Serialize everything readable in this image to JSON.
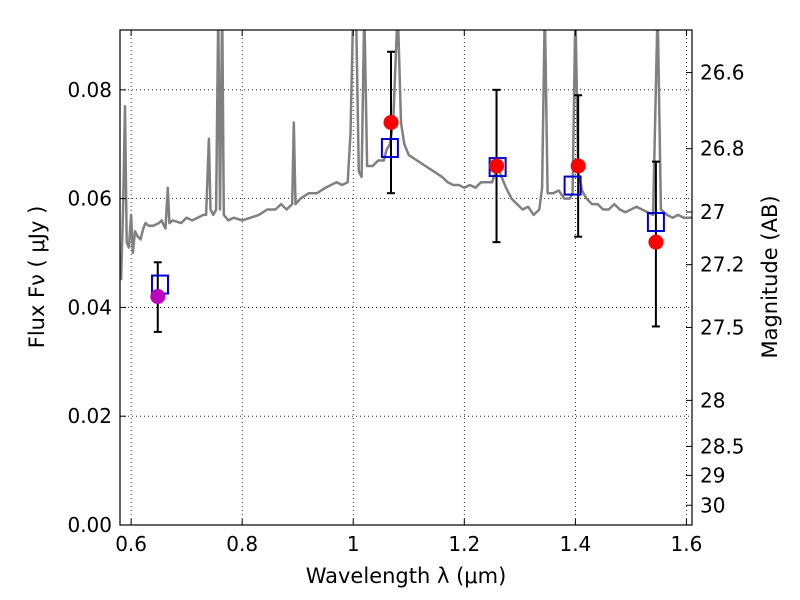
{
  "chart_data": {
    "type": "scatter",
    "title": "",
    "xlabel": "Wavelength  λ (μm)",
    "ylabel": "Flux  Fν  ( μJy )",
    "y2label": "Magnitude (AB)",
    "xlim": [
      0.58,
      1.61
    ],
    "ylim": [
      0.0,
      0.091
    ],
    "grid": true,
    "x_ticks": [
      {
        "value": 0.6,
        "label": "0.6"
      },
      {
        "value": 0.8,
        "label": "0.8"
      },
      {
        "value": 1.0,
        "label": "1"
      },
      {
        "value": 1.2,
        "label": "1.2"
      },
      {
        "value": 1.4,
        "label": "1.4"
      },
      {
        "value": 1.6,
        "label": "1.6"
      }
    ],
    "y_ticks": [
      {
        "value": 0.0,
        "label": "0.00"
      },
      {
        "value": 0.02,
        "label": "0.02"
      },
      {
        "value": 0.04,
        "label": "0.04"
      },
      {
        "value": 0.06,
        "label": "0.06"
      },
      {
        "value": 0.08,
        "label": "0.08"
      }
    ],
    "mag_ticks": [
      {
        "value": 26.6,
        "label": "26.6"
      },
      {
        "value": 26.8,
        "label": "26.8"
      },
      {
        "value": 27.0,
        "label": "27"
      },
      {
        "value": 27.2,
        "label": "27.2"
      },
      {
        "value": 27.5,
        "label": "27.5"
      },
      {
        "value": 28.0,
        "label": "28"
      },
      {
        "value": 28.5,
        "label": "28.5"
      },
      {
        "value": 29.0,
        "label": "29"
      },
      {
        "value": 30.0,
        "label": "30"
      }
    ],
    "model_spectrum": {
      "color": "#808080",
      "points": [
        [
          0.582,
          0.045
        ],
        [
          0.586,
          0.06
        ],
        [
          0.589,
          0.077
        ],
        [
          0.592,
          0.052
        ],
        [
          0.596,
          0.051
        ],
        [
          0.6,
          0.057
        ],
        [
          0.603,
          0.05
        ],
        [
          0.607,
          0.054
        ],
        [
          0.612,
          0.053
        ],
        [
          0.617,
          0.0525
        ],
        [
          0.622,
          0.0545
        ],
        [
          0.626,
          0.0555
        ],
        [
          0.632,
          0.055
        ],
        [
          0.64,
          0.055
        ],
        [
          0.65,
          0.0555
        ],
        [
          0.655,
          0.056
        ],
        [
          0.659,
          0.055
        ],
        [
          0.662,
          0.0545
        ],
        [
          0.666,
          0.062
        ],
        [
          0.669,
          0.0555
        ],
        [
          0.675,
          0.056
        ],
        [
          0.69,
          0.0555
        ],
        [
          0.7,
          0.0565
        ],
        [
          0.71,
          0.056
        ],
        [
          0.72,
          0.0565
        ],
        [
          0.73,
          0.057
        ],
        [
          0.735,
          0.057
        ],
        [
          0.74,
          0.071
        ],
        [
          0.743,
          0.058
        ],
        [
          0.748,
          0.057
        ],
        [
          0.753,
          0.058
        ],
        [
          0.757,
          0.095
        ],
        [
          0.76,
          0.058
        ],
        [
          0.764,
          0.095
        ],
        [
          0.767,
          0.057
        ],
        [
          0.775,
          0.056
        ],
        [
          0.785,
          0.0565
        ],
        [
          0.8,
          0.056
        ],
        [
          0.815,
          0.0565
        ],
        [
          0.83,
          0.057
        ],
        [
          0.845,
          0.058
        ],
        [
          0.86,
          0.058
        ],
        [
          0.87,
          0.059
        ],
        [
          0.88,
          0.058
        ],
        [
          0.89,
          0.059
        ],
        [
          0.893,
          0.074
        ],
        [
          0.896,
          0.059
        ],
        [
          0.905,
          0.06
        ],
        [
          0.92,
          0.061
        ],
        [
          0.935,
          0.061
        ],
        [
          0.95,
          0.062
        ],
        [
          0.96,
          0.0625
        ],
        [
          0.97,
          0.063
        ],
        [
          0.98,
          0.0625
        ],
        [
          0.99,
          0.063
        ],
        [
          0.995,
          0.072
        ],
        [
          1.0,
          0.095
        ],
        [
          1.005,
          0.095
        ],
        [
          1.01,
          0.065
        ],
        [
          1.015,
          0.064
        ],
        [
          1.02,
          0.095
        ],
        [
          1.025,
          0.066
        ],
        [
          1.035,
          0.066
        ],
        [
          1.045,
          0.067
        ],
        [
          1.055,
          0.067
        ],
        [
          1.06,
          0.069
        ],
        [
          1.066,
          0.07
        ],
        [
          1.072,
          0.074
        ],
        [
          1.08,
          0.095
        ],
        [
          1.086,
          0.074
        ],
        [
          1.092,
          0.07
        ],
        [
          1.1,
          0.068
        ],
        [
          1.115,
          0.067
        ],
        [
          1.13,
          0.066
        ],
        [
          1.145,
          0.065
        ],
        [
          1.16,
          0.064
        ],
        [
          1.17,
          0.063
        ],
        [
          1.18,
          0.0625
        ],
        [
          1.19,
          0.0625
        ],
        [
          1.2,
          0.062
        ],
        [
          1.21,
          0.0625
        ],
        [
          1.22,
          0.062
        ],
        [
          1.23,
          0.063
        ],
        [
          1.24,
          0.063
        ],
        [
          1.25,
          0.063
        ],
        [
          1.255,
          0.0645
        ],
        [
          1.26,
          0.066
        ],
        [
          1.265,
          0.0645
        ],
        [
          1.275,
          0.062
        ],
        [
          1.285,
          0.06
        ],
        [
          1.295,
          0.059
        ],
        [
          1.305,
          0.058
        ],
        [
          1.315,
          0.0585
        ],
        [
          1.325,
          0.057
        ],
        [
          1.335,
          0.058
        ],
        [
          1.34,
          0.062
        ],
        [
          1.345,
          0.095
        ],
        [
          1.35,
          0.061
        ],
        [
          1.36,
          0.061
        ],
        [
          1.37,
          0.0615
        ],
        [
          1.38,
          0.06
        ],
        [
          1.39,
          0.06
        ],
        [
          1.395,
          0.061
        ],
        [
          1.4,
          0.095
        ],
        [
          1.405,
          0.065
        ],
        [
          1.412,
          0.0615
        ],
        [
          1.42,
          0.06
        ],
        [
          1.43,
          0.059
        ],
        [
          1.44,
          0.059
        ],
        [
          1.45,
          0.058
        ],
        [
          1.46,
          0.058
        ],
        [
          1.47,
          0.059
        ],
        [
          1.48,
          0.058
        ],
        [
          1.49,
          0.0575
        ],
        [
          1.5,
          0.058
        ],
        [
          1.51,
          0.0585
        ],
        [
          1.52,
          0.058
        ],
        [
          1.53,
          0.0575
        ],
        [
          1.54,
          0.057
        ],
        [
          1.548,
          0.095
        ],
        [
          1.554,
          0.058
        ],
        [
          1.565,
          0.057
        ],
        [
          1.575,
          0.0565
        ],
        [
          1.585,
          0.057
        ],
        [
          1.595,
          0.0565
        ],
        [
          1.605,
          0.0565
        ],
        [
          1.61,
          0.0565
        ]
      ]
    },
    "observed": [
      {
        "x": 0.648,
        "y": 0.042,
        "err_low": 0.0355,
        "err_high": 0.0483,
        "color": "#bf00bf"
      },
      {
        "x": 1.068,
        "y": 0.074,
        "err_low": 0.061,
        "err_high": 0.087,
        "color": "#ff0000"
      },
      {
        "x": 1.258,
        "y": 0.066,
        "err_low": 0.052,
        "err_high": 0.08,
        "color": "#ff0000"
      },
      {
        "x": 1.405,
        "y": 0.066,
        "err_low": 0.053,
        "err_high": 0.079,
        "color": "#ff0000"
      },
      {
        "x": 1.545,
        "y": 0.052,
        "err_low": 0.0365,
        "err_high": 0.0668,
        "color": "#ff0000"
      }
    ],
    "model_photometry": {
      "color": "#0000cc",
      "points": [
        {
          "x": 0.652,
          "y": 0.0442
        },
        {
          "x": 1.066,
          "y": 0.0693
        },
        {
          "x": 1.26,
          "y": 0.0658
        },
        {
          "x": 1.395,
          "y": 0.0624
        },
        {
          "x": 1.545,
          "y": 0.0557
        }
      ]
    }
  }
}
